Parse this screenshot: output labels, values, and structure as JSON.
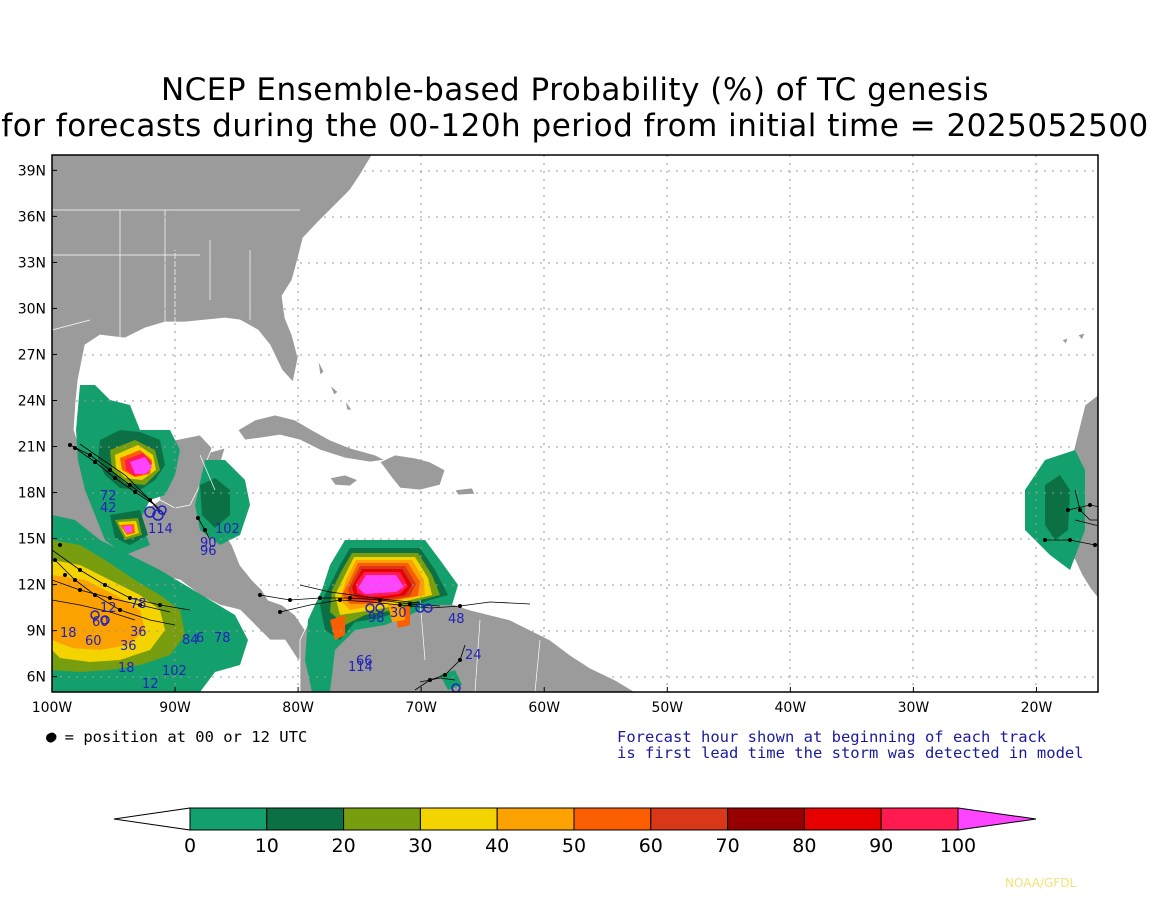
{
  "title": {
    "line1": "NCEP Ensemble-based Probability (%) of TC genesis",
    "line2": "for forecasts during the 00-120h period from initial time = 2025052500"
  },
  "axes": {
    "lat_labels": [
      "39N",
      "36N",
      "33N",
      "30N",
      "27N",
      "24N",
      "21N",
      "18N",
      "15N",
      "12N",
      "9N",
      "6N"
    ],
    "lat_values": [
      39,
      36,
      33,
      30,
      27,
      24,
      21,
      18,
      15,
      12,
      9,
      6
    ],
    "lon_labels": [
      "100W",
      "90W",
      "80W",
      "70W",
      "60W",
      "50W",
      "40W",
      "30W",
      "20W"
    ],
    "lon_values": [
      -100,
      -90,
      -80,
      -70,
      -60,
      -50,
      -40,
      -30,
      -20
    ],
    "lon_range": [
      -100,
      -15
    ],
    "lat_range": [
      5,
      40
    ],
    "grid": "dotted"
  },
  "notes": {
    "legend": "● = position at 00 or 12 UTC",
    "forecast_line1": "Forecast hour shown at beginning of each track",
    "forecast_line2": "is first lead time the storm was detected in model"
  },
  "colorbar": {
    "ticks": [
      "0",
      "10",
      "20",
      "30",
      "40",
      "50",
      "60",
      "70",
      "80",
      "90",
      "100"
    ],
    "colors": [
      "#13a06c",
      "#0b7044",
      "#789e10",
      "#f4d400",
      "#fba100",
      "#fb5e00",
      "#d83818",
      "#960000",
      "#e60000",
      "#ff1a50",
      "#ff44ff"
    ]
  },
  "colors": {
    "land": "#9b9b9b",
    "ocean": "#ffffff",
    "track_label": "#2222bb"
  },
  "track_labels": [
    "72",
    "42",
    "18",
    "114",
    "90",
    "96",
    "102",
    "24",
    "48",
    "66",
    "114",
    "98",
    "60",
    "78",
    "36",
    "18",
    "12",
    "102",
    "84",
    "6",
    "78",
    "36",
    "60",
    "12",
    "30"
  ],
  "credit": "NOAA/GFDL"
}
